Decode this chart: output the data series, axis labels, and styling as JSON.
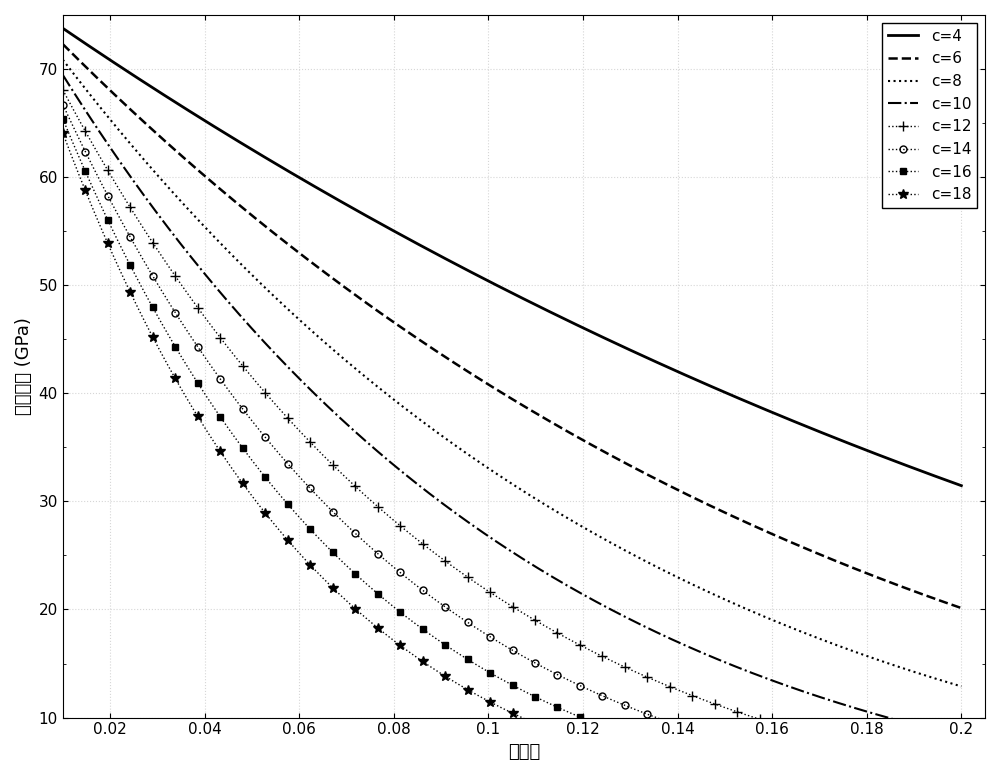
{
  "K0": 76.8,
  "c_values": [
    4,
    6,
    8,
    10,
    12,
    14,
    16,
    18
  ],
  "phi_min": 0.01,
  "phi_max": 0.2,
  "phi_num": 1000,
  "x_ticks": [
    0.02,
    0.04,
    0.06,
    0.08,
    0.1,
    0.12,
    0.14,
    0.16,
    0.18,
    0.2
  ],
  "x_tick_labels": [
    "0.02",
    "0.04",
    "0.06",
    "0.08",
    "0.1",
    "0.12",
    "0.14",
    "0.16",
    "0.18",
    "0.2"
  ],
  "y_ticks": [
    10,
    20,
    30,
    40,
    50,
    60,
    70
  ],
  "ylim": [
    10,
    75
  ],
  "xlim": [
    0.01,
    0.205
  ],
  "xlabel": "孔隙度",
  "ylabel": "体积模量 (GPa)",
  "line_styles": [
    {
      "linestyle": "-",
      "marker": null,
      "label": "c=4",
      "lw": 2.0
    },
    {
      "linestyle": "--",
      "marker": null,
      "label": "c=6",
      "lw": 1.8
    },
    {
      "linestyle": ":",
      "marker": null,
      "label": "c=8",
      "lw": 1.5
    },
    {
      "linestyle": "-.",
      "marker": null,
      "label": "c=10",
      "lw": 1.5
    },
    {
      "linestyle": ":",
      "marker": "+",
      "label": "c=12",
      "lw": 1.0
    },
    {
      "linestyle": ":",
      "marker": "o",
      "label": "c=14",
      "lw": 1.0
    },
    {
      "linestyle": ":",
      "marker": "s",
      "label": "c=16",
      "lw": 1.0
    },
    {
      "linestyle": ":",
      "marker": "*",
      "label": "c=18",
      "lw": 1.0
    }
  ],
  "line_color": "#000000",
  "marker_every": 25,
  "marker_sizes": {
    "+": 7,
    "o": 5,
    "s": 5,
    "*": 7
  },
  "legend_loc": "upper right",
  "font_size_labels": 13,
  "font_size_ticks": 11,
  "font_size_legend": 11,
  "background_color": "#ffffff",
  "grid_color": "#cccccc",
  "grid_alpha": 0.8
}
